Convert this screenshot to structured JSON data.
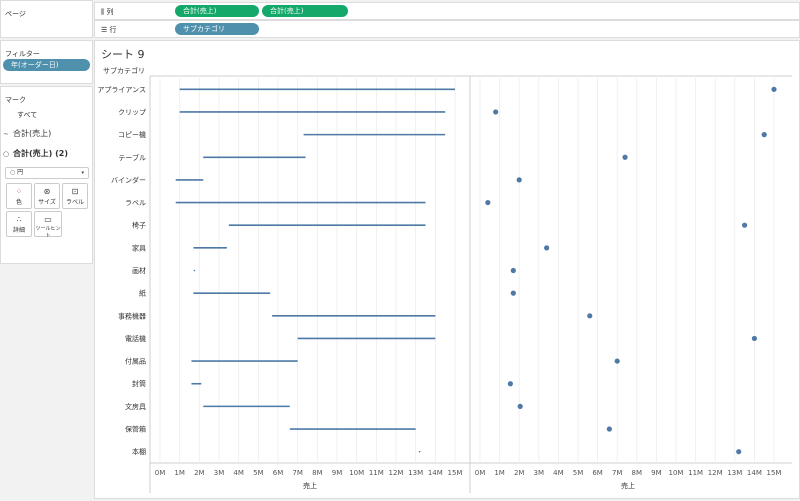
{
  "sidebar": {
    "pages_title": "ページ",
    "filters_title": "フィルター",
    "filter_pill": "年(オーダー日)",
    "marks_title": "マーク",
    "marks_rows": [
      {
        "label": "すべて",
        "icon": "none",
        "bold": false
      },
      {
        "label": "合計(売上)",
        "icon": "line-mark-icon",
        "bold": false
      },
      {
        "label": "合計(売上) (2)",
        "icon": "circle-mark-icon",
        "bold": true
      }
    ],
    "mark_type": "円",
    "mark_buttons": [
      {
        "label": "色",
        "icon": "color-icon"
      },
      {
        "label": "サイズ",
        "icon": "size-icon"
      },
      {
        "label": "ラベル",
        "icon": "label-icon"
      },
      {
        "label": "詳細",
        "icon": "detail-icon"
      },
      {
        "label": "ツールヒント",
        "icon": "tooltip-icon"
      }
    ]
  },
  "shelves": {
    "columns_label": "列",
    "columns_pills": [
      "合計(売上)",
      "合計(売上)"
    ],
    "rows_label": "行",
    "rows_pills": [
      "サブカテゴリ"
    ]
  },
  "sheet": {
    "title": "シート 9",
    "row_header": "サブカテゴリ"
  },
  "colors": {
    "green_pill": "#14a86a",
    "blue_pill": "#4f90ad",
    "mark": "#4e79a7"
  },
  "chart_data": [
    {
      "type": "line",
      "description_of_marks": "line per subcategory connecting two year values",
      "categories": [
        "アプライアンス",
        "クリップ",
        "コピー機",
        "テーブル",
        "バインダー",
        "ラベル",
        "椅子",
        "家具",
        "画材",
        "紙",
        "事務機器",
        "電話機",
        "付属品",
        "封筒",
        "文房具",
        "保管箱",
        "本棚"
      ],
      "start": [
        1.0,
        1.0,
        7.3,
        2.2,
        0.8,
        0.8,
        3.5,
        1.7,
        1.75,
        1.7,
        5.7,
        7.0,
        1.6,
        1.6,
        2.2,
        6.6,
        13.2
      ],
      "end": [
        15.0,
        14.5,
        14.5,
        7.4,
        2.2,
        13.5,
        13.5,
        3.4,
        1.75,
        5.6,
        14.0,
        14.0,
        7.0,
        2.1,
        6.6,
        13.0,
        13.2
      ],
      "xlabel": "売上",
      "xlim": [
        0,
        15.5
      ],
      "ticks": [
        "0M",
        "1M",
        "2M",
        "3M",
        "4M",
        "5M",
        "6M",
        "7M",
        "8M",
        "9M",
        "10M",
        "11M",
        "12M",
        "13M",
        "14M",
        "15M"
      ],
      "grid": true
    },
    {
      "type": "scatter",
      "categories": [
        "アプライアンス",
        "クリップ",
        "コピー機",
        "テーブル",
        "バインダー",
        "ラベル",
        "椅子",
        "家具",
        "画材",
        "紙",
        "事務機器",
        "電話機",
        "付属品",
        "封筒",
        "文房具",
        "保管箱",
        "本棚"
      ],
      "values": [
        15.0,
        0.8,
        14.5,
        7.4,
        2.0,
        0.4,
        13.5,
        3.4,
        1.7,
        1.7,
        5.6,
        14.0,
        7.0,
        1.55,
        2.05,
        6.6,
        13.2
      ],
      "xlabel": "売上",
      "xlim": [
        0,
        15.5
      ],
      "ticks": [
        "0M",
        "1M",
        "2M",
        "3M",
        "4M",
        "5M",
        "6M",
        "7M",
        "8M",
        "9M",
        "10M",
        "11M",
        "12M",
        "13M",
        "14M",
        "15M"
      ],
      "grid": true
    }
  ]
}
